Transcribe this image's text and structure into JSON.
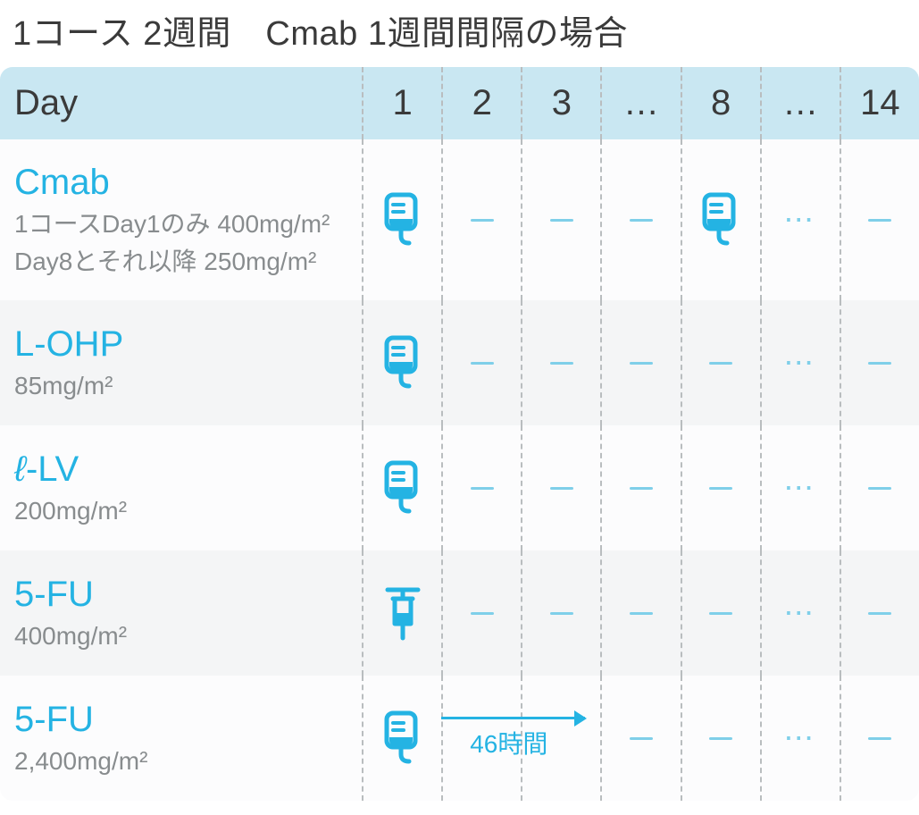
{
  "title": "1コース 2週間　Cmab 1週間間隔の場合",
  "table": {
    "header": {
      "label": "Day",
      "days": [
        "1",
        "2",
        "3",
        "…",
        "8",
        "…",
        "14"
      ]
    },
    "rows": [
      {
        "name": "Cmab",
        "dose_lines": [
          "1コースDay1のみ 400mg/m²",
          "Day8とそれ以降 250mg/m²"
        ],
        "cells": [
          "infusion",
          "dash",
          "dash",
          "dash",
          "infusion",
          "dots",
          "dash"
        ]
      },
      {
        "name": "L-OHP",
        "dose_lines": [
          "85mg/m²"
        ],
        "cells": [
          "infusion",
          "dash",
          "dash",
          "dash",
          "dash",
          "dots",
          "dash"
        ]
      },
      {
        "name_html": "<span class=\"ell-italic\">ℓ</span>-LV",
        "name": "ℓ-LV",
        "dose_lines": [
          "200mg/m²"
        ],
        "cells": [
          "infusion",
          "dash",
          "dash",
          "dash",
          "dash",
          "dots",
          "dash"
        ]
      },
      {
        "name": "5-FU",
        "dose_lines": [
          "400mg/m²"
        ],
        "cells": [
          "syringe",
          "dash",
          "dash",
          "dash",
          "dash",
          "dots",
          "dash"
        ]
      },
      {
        "name": "5-FU",
        "dose_lines": [
          "2,400mg/m²"
        ],
        "cells": [
          "infusion",
          "arrow",
          "arrow_end",
          "dash",
          "dash",
          "dots",
          "dash"
        ],
        "arrow": {
          "label": "46時間",
          "span_cells": 2
        }
      }
    ]
  },
  "colors": {
    "accent": "#24b3e3",
    "accent_light": "#7fcfe9",
    "header_bg": "#c9e7f2",
    "row_alt_a": "#f4f5f6",
    "row_alt_b": "#fcfcfd",
    "text": "#3a3a3a",
    "muted": "#888c8e",
    "divider": "#b9bdbf"
  },
  "icons": {
    "infusion": "infusion-bag-icon",
    "syringe": "syringe-icon"
  }
}
